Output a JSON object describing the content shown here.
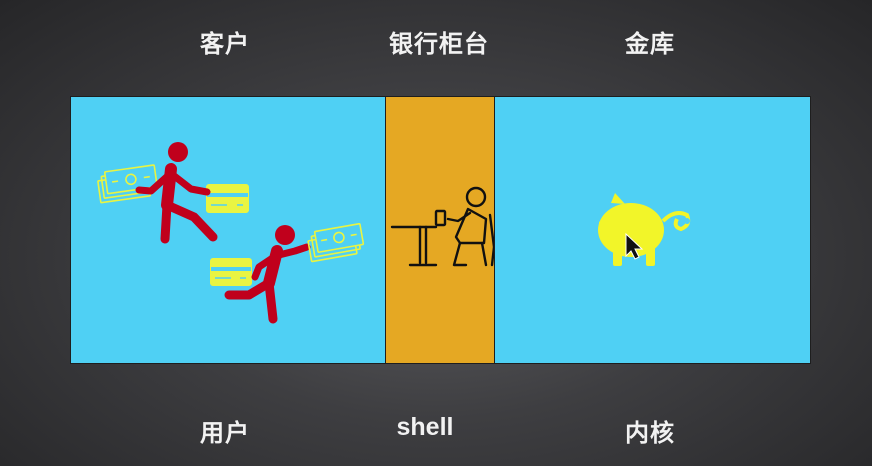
{
  "top_labels": {
    "customer": "客户",
    "counter": "银行柜台",
    "vault": "金库"
  },
  "bottom_labels": {
    "user": "用户",
    "shell": "shell",
    "kernel": "内核"
  },
  "colors": {
    "panel_blue": "#4fd0f4",
    "counter_orange": "#e5a823",
    "runner_red": "#c0001c",
    "money_yellow": "#e9f442",
    "pig_yellow": "#f2f529",
    "clerk_black": "#111111"
  },
  "icons": {
    "left": [
      "running-person-icon",
      "running-person-icon",
      "cash-icon",
      "cash-icon",
      "card-icon",
      "card-icon"
    ],
    "middle": "bank-clerk-icon",
    "right": "piggy-bank-icon",
    "cursor": "mouse-cursor-icon"
  }
}
